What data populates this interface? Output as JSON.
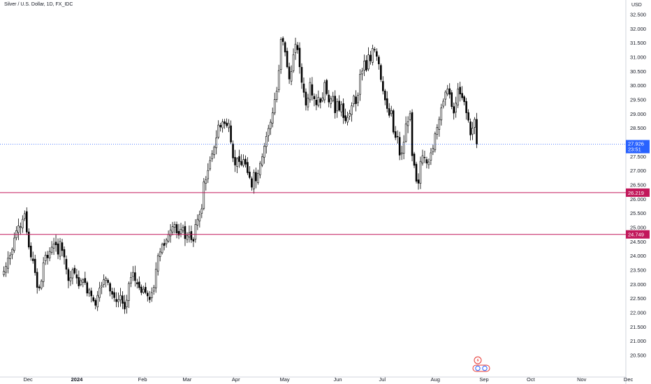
{
  "chart_data": {
    "type": "candlestick",
    "title": "Silver / U.S. Dollar, 1D, FX_IDC",
    "currency": "USD",
    "y_range": [
      20.25,
      32.75
    ],
    "y_ticks": [
      "20.500",
      "21.000",
      "21.500",
      "22.000",
      "22.500",
      "23.000",
      "23.500",
      "24.000",
      "24.500",
      "25.000",
      "25.500",
      "26.000",
      "26.500",
      "27.000",
      "27.500",
      "28.000",
      "28.500",
      "29.000",
      "29.500",
      "30.000",
      "30.500",
      "31.000",
      "31.500",
      "32.000",
      "32.500"
    ],
    "x_ticks": [
      {
        "label": "Dec",
        "t": 3
      },
      {
        "label": "2024",
        "t": 26
      },
      {
        "label": "Feb",
        "t": 57
      },
      {
        "label": "Mar",
        "t": 78
      },
      {
        "label": "Apr",
        "t": 101
      },
      {
        "label": "May",
        "t": 124
      },
      {
        "label": "Jun",
        "t": 149
      },
      {
        "label": "Jul",
        "t": 170
      },
      {
        "label": "Aug",
        "t": 195
      },
      {
        "label": "Sep",
        "t": 218
      },
      {
        "label": "Oct",
        "t": 240
      },
      {
        "label": "Nov",
        "t": 264
      },
      {
        "label": "Dec",
        "t": 286
      }
    ],
    "price_lines": [
      {
        "value": 26.219,
        "label": "26.219",
        "color": "#c2185b"
      },
      {
        "value": 24.749,
        "label": "24.749",
        "color": "#c2185b"
      }
    ],
    "last_price": {
      "value": 27.926,
      "label": "27.926",
      "countdown": "23:51",
      "color": "#2962ff"
    },
    "closes": [
      23.45,
      23.62,
      23.91,
      24.01,
      24.22,
      24.62,
      24.88,
      25.05,
      25.02,
      25.28,
      25.48,
      24.83,
      24.3,
      23.95,
      23.82,
      23.4,
      22.88,
      22.86,
      23.1,
      23.75,
      24.02,
      23.92,
      24.15,
      24.3,
      24.41,
      24.38,
      24.05,
      24.5,
      24.18,
      23.95,
      23.52,
      23.12,
      23.22,
      23.5,
      23.38,
      23.21,
      22.93,
      23.12,
      23.15,
      23.05,
      22.68,
      22.8,
      22.58,
      22.41,
      22.25,
      22.6,
      22.86,
      22.95,
      23.15,
      23.2,
      23.05,
      22.75,
      22.64,
      22.52,
      22.38,
      22.45,
      22.6,
      22.32,
      22.12,
      22.43,
      23.02,
      23.23,
      23.41,
      23.12,
      23.0,
      22.87,
      22.7,
      22.82,
      22.7,
      22.58,
      22.45,
      22.7,
      22.88,
      23.52,
      24.0,
      24.13,
      24.4,
      24.36,
      24.55,
      24.75,
      24.9,
      25.02,
      25.1,
      24.8,
      24.72,
      24.93,
      25.0,
      24.6,
      24.7,
      24.81,
      24.56,
      24.51,
      25.1,
      25.28,
      25.45,
      25.65,
      26.6,
      26.67,
      27.0,
      27.35,
      27.59,
      27.82,
      28.15,
      28.6,
      28.53,
      28.71,
      28.65,
      28.58,
      28.65,
      28.0,
      27.44,
      27.19,
      27.42,
      27.31,
      27.2,
      27.38,
      27.22,
      26.92,
      26.75,
      26.41,
      26.93,
      26.63,
      26.9,
      27.25,
      27.48,
      27.85,
      28.2,
      28.48,
      28.7,
      29.03,
      29.5,
      29.8,
      30.52,
      31.62,
      31.54,
      31.17,
      30.65,
      30.22,
      30.48,
      31.08,
      31.45,
      31.25,
      30.65,
      30.1,
      29.75,
      29.3,
      29.55,
      30.1,
      29.65,
      29.52,
      29.31,
      29.58,
      29.4,
      29.56,
      30.1,
      29.7,
      29.41,
      29.52,
      29.61,
      29.03,
      29.42,
      29.12,
      29.32,
      28.86,
      28.75,
      28.87,
      29.01,
      29.28,
      29.62,
      29.35,
      29.65,
      30.39,
      30.5,
      30.85,
      30.53,
      31.07,
      30.86,
      31.3,
      31.24,
      31.02,
      30.75,
      30.2,
      29.8,
      29.48,
      29.18,
      28.94,
      29.11,
      28.35,
      28.16,
      28.19,
      27.54,
      27.62,
      28.0,
      28.64,
      28.72,
      29.0,
      27.52,
      27.18,
      26.62,
      26.55,
      27.32,
      27.52,
      27.46,
      27.26,
      27.3,
      27.62,
      27.78,
      28.29,
      28.52,
      28.8,
      29.21,
      29.44,
      29.76,
      29.87,
      29.68,
      29.25,
      29.02,
      29.37,
      29.87,
      29.69,
      29.56,
      29.42,
      29.03,
      28.77,
      28.25,
      28.49,
      28.8,
      27.93
    ]
  }
}
